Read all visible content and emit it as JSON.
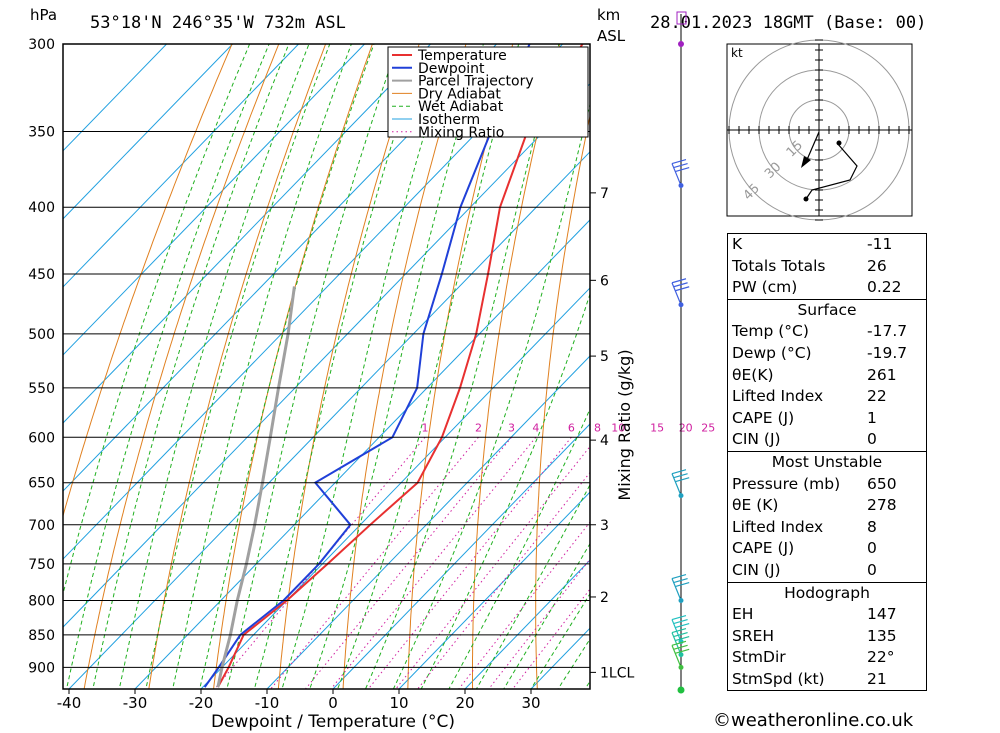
{
  "header": {
    "location": "53°18'N  246°35'W  732m  ASL",
    "datetime": "28.01.2023  18GMT  (Base: 00)",
    "left_unit": "hPa",
    "right_unit_top": "km",
    "right_unit_bottom": "ASL"
  },
  "chart_data": {
    "type": "line",
    "subtype": "skew-T log-P",
    "xlabel": "Dewpoint / Temperature (°C)",
    "ylabel": "hPa",
    "xlim": [
      -42,
      38
    ],
    "ylim": [
      935,
      300
    ],
    "x_ticks": [
      -40,
      -30,
      -20,
      -10,
      0,
      10,
      20,
      30
    ],
    "pressure_levels": [
      300,
      350,
      400,
      450,
      500,
      550,
      600,
      650,
      700,
      750,
      800,
      850,
      900
    ],
    "km_labels": [
      {
        "label": "7",
        "p": 390
      },
      {
        "label": "6",
        "p": 455
      },
      {
        "label": "5",
        "p": 520
      },
      {
        "label": "4",
        "p": 603
      },
      {
        "label": "3",
        "p": 700
      },
      {
        "label": "2",
        "p": 795
      },
      {
        "label": "1LCL",
        "p": 908
      }
    ],
    "mixing_ratio_axis_label": "Mixing Ratio (g/kg)",
    "mixing_ratios": [
      1,
      2,
      3,
      4,
      6,
      8,
      10,
      15,
      20,
      25
    ],
    "legend": [
      "Temperature",
      "Dewpoint",
      "Parcel Trajectory",
      "Dry Adiabat",
      "Wet Adiabat",
      "Isotherm",
      "Mixing Ratio"
    ],
    "legend_position": "top-right",
    "series": [
      {
        "name": "Temperature",
        "color": "#e83030",
        "points": [
          [
            932,
            -17.7
          ],
          [
            900,
            -19.0
          ],
          [
            850,
            -21.5
          ],
          [
            800,
            -20.0
          ],
          [
            750,
            -19.2
          ],
          [
            700,
            -18.5
          ],
          [
            650,
            -17.5
          ],
          [
            600,
            -20.5
          ],
          [
            550,
            -25.0
          ],
          [
            500,
            -30.5
          ],
          [
            450,
            -37.5
          ],
          [
            400,
            -45.5
          ],
          [
            350,
            -52.5
          ],
          [
            300,
            -57.0
          ]
        ]
      },
      {
        "name": "Dewpoint",
        "color": "#2040d8",
        "points": [
          [
            932,
            -19.7
          ],
          [
            900,
            -20.5
          ],
          [
            850,
            -22.0
          ],
          [
            800,
            -20.5
          ],
          [
            750,
            -20.5
          ],
          [
            700,
            -21.5
          ],
          [
            680,
            -26.0
          ],
          [
            650,
            -33.0
          ],
          [
            600,
            -28.0
          ],
          [
            550,
            -31.5
          ],
          [
            500,
            -38.5
          ],
          [
            450,
            -44.5
          ],
          [
            400,
            -51.5
          ],
          [
            350,
            -58.0
          ],
          [
            300,
            -65.0
          ]
        ]
      },
      {
        "name": "Parcel Trajectory",
        "color": "#a0a0a0",
        "points": [
          [
            932,
            -17.7
          ],
          [
            900,
            -20.0
          ],
          [
            850,
            -23.5
          ],
          [
            800,
            -27.5
          ],
          [
            750,
            -31.5
          ],
          [
            700,
            -36.0
          ],
          [
            650,
            -41.0
          ],
          [
            600,
            -46.5
          ],
          [
            550,
            -52.5
          ],
          [
            500,
            -59.0
          ],
          [
            460,
            -65.0
          ]
        ]
      }
    ],
    "wind_barbs_levels": [
      385,
      475,
      665,
      800,
      860,
      880,
      900
    ]
  },
  "hodograph": {
    "unit": "kt",
    "rings": [
      "15",
      "30",
      "45"
    ]
  },
  "indices": {
    "k": {
      "label": "K",
      "value": "-11"
    },
    "tt": {
      "label": "Totals Totals",
      "value": "26"
    },
    "pw": {
      "label": "PW (cm)",
      "value": "0.22"
    }
  },
  "surface": {
    "title": "Surface",
    "rows": [
      {
        "label": "Temp (°C)",
        "value": "-17.7"
      },
      {
        "label": "Dewp (°C)",
        "value": "-19.7"
      },
      {
        "label": "θE(K)",
        "value": "261"
      },
      {
        "label": "Lifted Index",
        "value": "22"
      },
      {
        "label": "CAPE (J)",
        "value": "1"
      },
      {
        "label": "CIN (J)",
        "value": "0"
      }
    ]
  },
  "most_unstable": {
    "title": "Most Unstable",
    "rows": [
      {
        "label": "Pressure (mb)",
        "value": "650"
      },
      {
        "label": "θE (K)",
        "value": "278"
      },
      {
        "label": "Lifted Index",
        "value": "8"
      },
      {
        "label": "CAPE (J)",
        "value": "0"
      },
      {
        "label": "CIN (J)",
        "value": "0"
      }
    ]
  },
  "hodo_stats": {
    "title": "Hodograph",
    "rows": [
      {
        "label": "EH",
        "value": "147"
      },
      {
        "label": "SREH",
        "value": "135"
      },
      {
        "label": "StmDir",
        "value": "22°"
      },
      {
        "label": "StmSpd (kt)",
        "value": "21"
      }
    ]
  },
  "footer": {
    "credit": "©weatheronline.co.uk"
  },
  "colors": {
    "temperature": "#e83030",
    "dewpoint": "#2040d8",
    "parcel": "#a0a0a0",
    "dry": "#e08020",
    "wet": "#20b020",
    "iso": "#20a0e0",
    "mix": "#d020a0"
  }
}
